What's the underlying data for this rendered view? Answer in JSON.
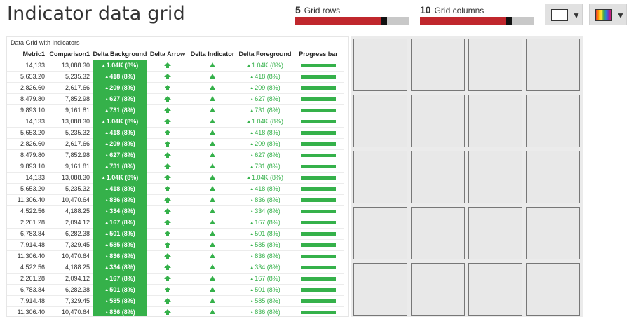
{
  "header": {
    "title": "Indicator data grid"
  },
  "controls": {
    "rows_slider": {
      "value": "5",
      "label": "Grid rows",
      "fill_fraction": 0.79
    },
    "cols_slider": {
      "value": "10",
      "label": "Grid columns",
      "fill_fraction": 0.79
    },
    "background_picker": {
      "icon": "white-swatch-icon",
      "color": "#ffffff"
    },
    "palette_picker": {
      "icon": "rainbow-palette-icon"
    }
  },
  "grid": {
    "caption": "Data Grid with Indicators",
    "columns": [
      "Metric1",
      "Comparison1",
      "Delta Background",
      "Delta Arrow",
      "Delta Indicator",
      "Delta Foreground",
      "Progress bar"
    ],
    "accent_color": "#35b14a",
    "rows": [
      {
        "metric": "14,133",
        "comparison": "13,088.30",
        "delta": "1.04K (8%)"
      },
      {
        "metric": "5,653.20",
        "comparison": "5,235.32",
        "delta": "418 (8%)"
      },
      {
        "metric": "2,826.60",
        "comparison": "2,617.66",
        "delta": "209 (8%)"
      },
      {
        "metric": "8,479.80",
        "comparison": "7,852.98",
        "delta": "627 (8%)"
      },
      {
        "metric": "9,893.10",
        "comparison": "9,161.81",
        "delta": "731 (8%)"
      },
      {
        "metric": "14,133",
        "comparison": "13,088.30",
        "delta": "1.04K (8%)"
      },
      {
        "metric": "5,653.20",
        "comparison": "5,235.32",
        "delta": "418 (8%)"
      },
      {
        "metric": "2,826.60",
        "comparison": "2,617.66",
        "delta": "209 (8%)"
      },
      {
        "metric": "8,479.80",
        "comparison": "7,852.98",
        "delta": "627 (8%)"
      },
      {
        "metric": "9,893.10",
        "comparison": "9,161.81",
        "delta": "731 (8%)"
      },
      {
        "metric": "14,133",
        "comparison": "13,088.30",
        "delta": "1.04K (8%)"
      },
      {
        "metric": "5,653.20",
        "comparison": "5,235.32",
        "delta": "418 (8%)"
      },
      {
        "metric": "11,306.40",
        "comparison": "10,470.64",
        "delta": "836 (8%)"
      },
      {
        "metric": "4,522.56",
        "comparison": "4,188.25",
        "delta": "334 (8%)"
      },
      {
        "metric": "2,261.28",
        "comparison": "2,094.12",
        "delta": "167 (8%)"
      },
      {
        "metric": "6,783.84",
        "comparison": "6,282.38",
        "delta": "501 (8%)"
      },
      {
        "metric": "7,914.48",
        "comparison": "7,329.45",
        "delta": "585 (8%)"
      },
      {
        "metric": "11,306.40",
        "comparison": "10,470.64",
        "delta": "836 (8%)"
      },
      {
        "metric": "4,522.56",
        "comparison": "4,188.25",
        "delta": "334 (8%)"
      },
      {
        "metric": "2,261.28",
        "comparison": "2,094.12",
        "delta": "167 (8%)"
      },
      {
        "metric": "6,783.84",
        "comparison": "6,282.38",
        "delta": "501 (8%)"
      },
      {
        "metric": "7,914.48",
        "comparison": "7,329.45",
        "delta": "585 (8%)"
      },
      {
        "metric": "11,306.40",
        "comparison": "10,470.64",
        "delta": "836 (8%)"
      }
    ]
  },
  "tiles": {
    "rows": 5,
    "columns": 4
  }
}
